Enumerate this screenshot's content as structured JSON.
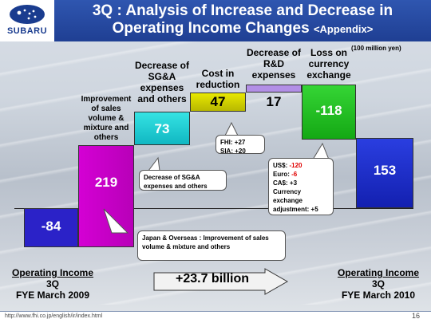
{
  "header": {
    "brand": "SUBARU",
    "title_line1": "3Q : Analysis of Increase and Decrease in",
    "title_line2": "Operating Income Changes",
    "title_appendix": "<Appendix>"
  },
  "unit_note": "(100 million yen)",
  "colors": {
    "negative": "#2b22c8",
    "improvement": "#cc00cc",
    "sga": "#1fd3d3",
    "cost": "#d6d600",
    "rnd": "#b28fe6",
    "loss": "#22c222",
    "final": "#1e2fd0",
    "red_text": "#e00000"
  },
  "chart_data": {
    "type": "bar",
    "subtype": "waterfall",
    "categories": [
      "Operating Income 3Q FYE March 2009",
      "Improvement of sales volume & mixture and others",
      "Decrease of SG&A expenses and others",
      "Cost in reduction",
      "Decrease of R&D expenses",
      "Loss on currency exchange",
      "Operating Income 3Q FYE March 2010"
    ],
    "values": [
      -84,
      219,
      73,
      47,
      17,
      -118,
      153
    ],
    "value_labels": [
      "-84",
      "219",
      "73",
      "47",
      "17",
      "-118",
      "153"
    ],
    "ylim": [
      -84,
      272
    ]
  },
  "labels": {
    "improvement": "Improvement of sales volume & mixture and others",
    "sga": "Decrease of SG&A expenses and others",
    "cost": "Cost in reduction",
    "rnd": "Decrease of R&D expenses",
    "loss": "Loss on currency exchange"
  },
  "callouts": {
    "cost_fhi": "FHI: +27",
    "cost_sia": "SIA: +20",
    "sga": "Decrease of SG&A expenses and others",
    "fx_us_label": "US$:",
    "fx_us_value": "-120",
    "fx_euro_label": "Euro:",
    "fx_euro_value": "-6",
    "fx_ca": "CA$: +3",
    "fx_adj": "Currency exchange adjustment: +5",
    "japan": "Japan & Overseas : Improvement of sales volume & mixture and others"
  },
  "captions": {
    "left_title": "Operating Income",
    "left_sub1": "3Q",
    "left_sub2": "FYE March 2009",
    "right_title": "Operating Income",
    "right_sub1": "3Q",
    "right_sub2": "FYE March 2010",
    "arrow_text": "+23.7 billion"
  },
  "footer": {
    "url": "http://www.fhi.co.jp/english/ir/index.html",
    "page": "16"
  }
}
